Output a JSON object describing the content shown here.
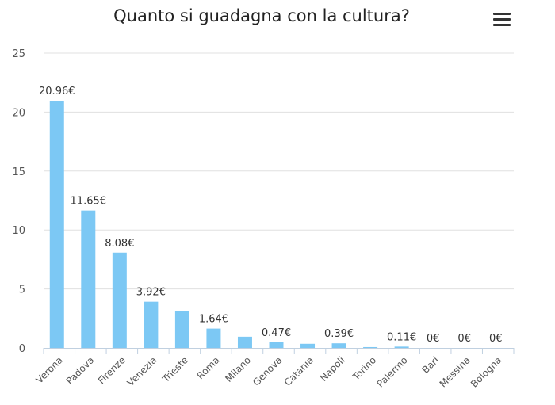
{
  "chart_data": {
    "type": "bar",
    "title": "Quanto si guadagna con la cultura?",
    "categories": [
      "Verona",
      "Padova",
      "Firenze",
      "Venezia",
      "Trieste",
      "Roma",
      "Milano",
      "Genova",
      "Catania",
      "Napoli",
      "Torino",
      "Palermo",
      "Bari",
      "Messina",
      "Bologna"
    ],
    "values": [
      20.96,
      11.65,
      8.08,
      3.92,
      3.1,
      1.64,
      0.95,
      0.47,
      0.35,
      0.39,
      0.07,
      0.11,
      0,
      0,
      0
    ],
    "data_labels": [
      "20.96€",
      "11.65€",
      "8.08€",
      "3.92€",
      null,
      "1.64€",
      null,
      "0.47€",
      null,
      "0.39€",
      null,
      "0.11€",
      "0€",
      "0€",
      "0€"
    ],
    "ylim": [
      0,
      25
    ],
    "yticks": [
      0,
      5,
      10,
      15,
      20,
      25
    ],
    "grid": true,
    "bar_color": "#7cc8f4",
    "xlabel": "",
    "ylabel": ""
  },
  "menu_icon": "hamburger-menu-icon"
}
